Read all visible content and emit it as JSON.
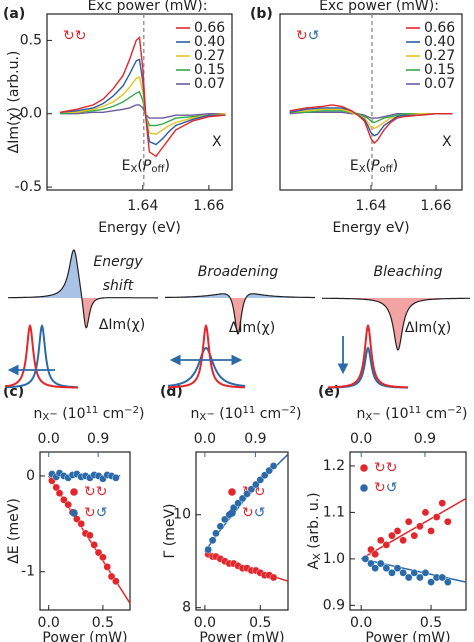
{
  "chart_data": [
    {
      "type": "line",
      "panel": "(a)",
      "legend_title": "Exc power (mW):",
      "polarization": {
        "text": "↻↻",
        "colors": [
          "#e3262b",
          "#e3262b"
        ]
      },
      "xlabel": "Energy (eV)",
      "ylabel": "ΔIm(χ) (arb.u.)",
      "annotation": "X",
      "vline": {
        "x": 1.6403,
        "color": "#8c8c8c",
        "label": [
          {
            "text": "E"
          },
          {
            "text": "X",
            "pos": "sub"
          },
          {
            "text": "("
          },
          {
            "text": "P",
            "style": "italic"
          },
          {
            "text": "off",
            "pos": "sub"
          },
          {
            "text": ")"
          }
        ]
      },
      "x": [
        1.615,
        1.62,
        1.625,
        1.628,
        1.631,
        1.634,
        1.636,
        1.638,
        1.639,
        1.64,
        1.641,
        1.642,
        1.644,
        1.646,
        1.648,
        1.65,
        1.655,
        1.66,
        1.665
      ],
      "xlim": [
        1.611,
        1.667
      ],
      "xticks": [
        1.64,
        1.66
      ],
      "ylim": [
        -0.52,
        0.68
      ],
      "yticks": [
        -0.5,
        {
          "value": 0,
          "label": "0.0"
        },
        0.5
      ],
      "series": [
        {
          "name": "0.66",
          "color": "#e3262b",
          "values": [
            0.01,
            0.03,
            0.06,
            0.1,
            0.17,
            0.26,
            0.37,
            0.5,
            0.52,
            0.31,
            -0.05,
            -0.26,
            -0.29,
            -0.23,
            -0.17,
            -0.11,
            -0.05,
            -0.02,
            -0.01
          ]
        },
        {
          "name": "0.40",
          "color": "#2b5ea8",
          "values": [
            0.01,
            0.02,
            0.04,
            0.07,
            0.12,
            0.19,
            0.27,
            0.36,
            0.37,
            0.22,
            -0.04,
            -0.19,
            -0.21,
            -0.17,
            -0.12,
            -0.08,
            -0.04,
            -0.01,
            -0.01
          ]
        },
        {
          "name": "0.27",
          "color": "#e8c21e",
          "values": [
            0.01,
            0.01,
            0.03,
            0.05,
            0.08,
            0.13,
            0.18,
            0.24,
            0.25,
            0.15,
            -0.03,
            -0.13,
            -0.14,
            -0.11,
            -0.08,
            -0.06,
            -0.03,
            -0.01,
            0.0
          ]
        },
        {
          "name": "0.15",
          "color": "#36a94a",
          "values": [
            0.0,
            0.01,
            0.02,
            0.03,
            0.05,
            0.08,
            0.11,
            0.14,
            0.15,
            0.09,
            -0.02,
            -0.08,
            -0.08,
            -0.07,
            -0.05,
            -0.03,
            -0.02,
            -0.01,
            0.0
          ]
        },
        {
          "name": "0.07",
          "color": "#6b5b9e",
          "values": [
            0.0,
            0.0,
            0.01,
            0.01,
            0.02,
            0.03,
            0.04,
            0.06,
            0.06,
            0.04,
            -0.01,
            -0.03,
            -0.03,
            -0.03,
            -0.02,
            -0.01,
            -0.01,
            0.0,
            0.0
          ]
        }
      ]
    },
    {
      "type": "line",
      "panel": "(b)",
      "legend_title": "Exc power (mW):",
      "polarization": {
        "text": "↻↺",
        "colors": [
          "#e3262b",
          "#2b6aa8"
        ]
      },
      "xlabel": "Energy eV)",
      "annotation": "X",
      "vline": {
        "x": 1.6403,
        "color": "#8c8c8c",
        "label": [
          {
            "text": "E"
          },
          {
            "text": "X",
            "pos": "sub"
          },
          {
            "text": "("
          },
          {
            "text": "P",
            "style": "italic"
          },
          {
            "text": "off",
            "pos": "sub"
          },
          {
            "text": ")"
          }
        ]
      },
      "x": [
        1.615,
        1.62,
        1.625,
        1.628,
        1.631,
        1.634,
        1.636,
        1.638,
        1.639,
        1.64,
        1.641,
        1.642,
        1.644,
        1.646,
        1.648,
        1.65,
        1.655,
        1.66,
        1.665
      ],
      "xlim": [
        1.612,
        1.668
      ],
      "xticks": [
        1.64,
        1.66
      ],
      "ylim": [
        -0.52,
        0.68
      ],
      "series": [
        {
          "name": "0.66",
          "color": "#e3262b",
          "values": [
            0.02,
            0.04,
            0.05,
            0.06,
            0.05,
            0.02,
            -0.01,
            -0.05,
            -0.11,
            -0.17,
            -0.2,
            -0.18,
            -0.11,
            -0.06,
            -0.03,
            -0.02,
            -0.01,
            0.0,
            0.0
          ]
        },
        {
          "name": "0.40",
          "color": "#2b5ea8",
          "values": [
            0.01,
            0.03,
            0.04,
            0.04,
            0.04,
            0.02,
            -0.01,
            -0.04,
            -0.08,
            -0.13,
            -0.15,
            -0.14,
            -0.08,
            -0.05,
            -0.02,
            -0.01,
            -0.01,
            0.0,
            0.0
          ]
        },
        {
          "name": "0.27",
          "color": "#e8c21e",
          "values": [
            0.01,
            0.02,
            0.03,
            0.03,
            0.03,
            0.01,
            -0.01,
            -0.03,
            -0.06,
            -0.09,
            -0.1,
            -0.09,
            -0.06,
            -0.03,
            -0.02,
            -0.01,
            0.0,
            0.0,
            0.0
          ]
        },
        {
          "name": "0.15",
          "color": "#36a94a",
          "values": [
            0.01,
            0.01,
            0.02,
            0.02,
            0.02,
            0.01,
            0.0,
            -0.02,
            -0.03,
            -0.05,
            -0.06,
            -0.05,
            -0.03,
            -0.02,
            -0.01,
            0.0,
            0.0,
            0.0,
            0.0
          ]
        },
        {
          "name": "0.07",
          "color": "#6b5b9e",
          "values": [
            0.0,
            0.01,
            0.01,
            0.01,
            0.01,
            0.0,
            0.0,
            -0.01,
            -0.02,
            -0.03,
            -0.03,
            -0.03,
            -0.02,
            -0.01,
            0.0,
            0.0,
            0.0,
            0.0,
            0.0
          ]
        }
      ]
    },
    {
      "type": "scatter",
      "panel": "(c)",
      "xlabel": "Power (mW)",
      "ylabel": "ΔE (meV)",
      "x2label": [
        {
          "text": "n"
        },
        {
          "text": "X",
          "pos": "sub"
        },
        {
          "text": "−",
          "pos": "subsup"
        },
        {
          "text": " (10"
        },
        {
          "text": "11",
          "pos": "sup"
        },
        {
          "text": " cm"
        },
        {
          "text": "−2",
          "pos": "sup"
        },
        {
          "text": ")"
        }
      ],
      "x2color": "#2b6aa8",
      "x": [
        0.03,
        0.07,
        0.1,
        0.14,
        0.18,
        0.22,
        0.26,
        0.3,
        0.34,
        0.38,
        0.42,
        0.46,
        0.5,
        0.54,
        0.58,
        0.62
      ],
      "xlim": [
        -0.08,
        0.75
      ],
      "xticks": [
        {
          "value": 0,
          "label": "0.0"
        },
        0.5
      ],
      "x2lim": [
        -0.158,
        1.48
      ],
      "x2ticks": [
        {
          "value": 0,
          "label": "0.0"
        },
        0.9
      ],
      "ylim": [
        -1.4,
        0.25
      ],
      "yticks": [
        -1,
        0
      ],
      "legend": "center-right",
      "series": [
        {
          "name": "↻↻",
          "legend_colors": [
            "#e3262b",
            "#e3262b"
          ],
          "color": "#e3262b",
          "values": [
            -0.05,
            -0.12,
            -0.18,
            -0.25,
            -0.3,
            -0.38,
            -0.45,
            -0.5,
            -0.6,
            -0.62,
            -0.72,
            -0.8,
            -0.85,
            -0.95,
            -1.05,
            -1.1
          ]
        },
        {
          "name": "↻↺",
          "legend_colors": [
            "#e3262b",
            "#2b6aa8"
          ],
          "color": "#2b6aa8",
          "values": [
            0.02,
            -0.01,
            0.03,
            0.0,
            -0.02,
            0.01,
            0.02,
            -0.01,
            0.0,
            -0.02,
            0.01,
            0.0,
            -0.03,
            0.01,
            0.0,
            -0.02
          ]
        }
      ],
      "fits": [
        {
          "color": "#e3262b",
          "x": [
            0,
            0.75
          ],
          "values": [
            0,
            -1.33
          ]
        },
        {
          "color": "#2b6aa8",
          "x": [
            0,
            0.66
          ],
          "values": [
            0,
            0
          ]
        }
      ]
    },
    {
      "type": "scatter",
      "panel": "(d)",
      "xlabel": "Power (mW)",
      "ylabel": "Γ (meV)",
      "x2label": [
        {
          "text": "n"
        },
        {
          "text": "X",
          "pos": "sub"
        },
        {
          "text": "−",
          "pos": "subsup"
        },
        {
          "text": " (10"
        },
        {
          "text": "11",
          "pos": "sup"
        },
        {
          "text": " cm"
        },
        {
          "text": "−2",
          "pos": "sup"
        },
        {
          "text": ")"
        }
      ],
      "x2color": "#2b6aa8",
      "x": [
        0.03,
        0.07,
        0.1,
        0.14,
        0.18,
        0.22,
        0.26,
        0.3,
        0.34,
        0.38,
        0.42,
        0.46,
        0.5,
        0.54,
        0.58,
        0.62
      ],
      "xlim": [
        -0.08,
        0.75
      ],
      "xticks": [
        {
          "value": 0,
          "label": "0.0"
        },
        0.5
      ],
      "x2lim": [
        -0.158,
        1.48
      ],
      "x2ticks": [
        {
          "value": 0,
          "label": "0.0"
        },
        0.9
      ],
      "ylim": [
        7.95,
        11.35
      ],
      "yticks": [
        8,
        10
      ],
      "legend": "center-right",
      "series": [
        {
          "name": "↻↻",
          "legend_colors": [
            "#e3262b",
            "#e3262b"
          ],
          "color": "#e3262b",
          "values": [
            9.15,
            9.1,
            9.1,
            9.05,
            9.0,
            8.95,
            8.95,
            8.9,
            8.85,
            8.85,
            8.8,
            8.8,
            8.75,
            8.7,
            8.7,
            8.65
          ]
        },
        {
          "name": "↻↺",
          "legend_colors": [
            "#e3262b",
            "#2b6aa8"
          ],
          "color": "#2b6aa8",
          "values": [
            9.25,
            9.45,
            9.6,
            9.75,
            9.9,
            10.0,
            10.15,
            10.25,
            10.35,
            10.45,
            10.55,
            10.65,
            10.75,
            10.85,
            10.95,
            11.05
          ]
        }
      ],
      "fits": [
        {
          "color": "#e3262b",
          "x": [
            0,
            0.75
          ],
          "values": [
            9.15,
            8.57
          ]
        },
        {
          "color": "#2b6aa8",
          "x": [
            0,
            0.1,
            0.2,
            0.3,
            0.4,
            0.5,
            0.6,
            0.75
          ],
          "values": [
            9.2,
            9.55,
            9.85,
            10.15,
            10.45,
            10.7,
            10.95,
            11.3
          ]
        }
      ]
    },
    {
      "type": "scatter",
      "panel": "(e)",
      "xlabel": "Power (mW)",
      "ylabel": [
        {
          "text": "A"
        },
        {
          "text": "X",
          "pos": "sub"
        },
        {
          "text": " (arb. u.)"
        }
      ],
      "x2label": [
        {
          "text": "n"
        },
        {
          "text": "X",
          "pos": "sub"
        },
        {
          "text": "−",
          "pos": "subsup"
        },
        {
          "text": " (10"
        },
        {
          "text": "11",
          "pos": "sup"
        },
        {
          "text": " cm"
        },
        {
          "text": "−2",
          "pos": "sup"
        },
        {
          "text": ")"
        }
      ],
      "x2color": "#2b6aa8",
      "x": [
        0.03,
        0.07,
        0.1,
        0.14,
        0.18,
        0.22,
        0.26,
        0.3,
        0.34,
        0.38,
        0.42,
        0.46,
        0.5,
        0.54,
        0.58,
        0.62
      ],
      "xlim": [
        -0.08,
        0.75
      ],
      "xticks": [
        {
          "value": 0,
          "label": "0.0"
        },
        0.5
      ],
      "x2lim": [
        -0.158,
        1.48
      ],
      "x2ticks": [
        {
          "value": 0,
          "label": "0.0"
        },
        0.9
      ],
      "ylim": [
        0.89,
        1.23
      ],
      "yticks": [
        0.9,
        {
          "value": 1,
          "label": "1.0"
        },
        1.1,
        1.2
      ],
      "legend": "upper-left",
      "series": [
        {
          "name": "↻↻",
          "legend_colors": [
            "#e3262b",
            "#e3262b"
          ],
          "color": "#e3262b",
          "values": [
            1.0,
            1.02,
            1.01,
            1.04,
            1.03,
            1.05,
            1.06,
            1.04,
            1.08,
            1.05,
            1.07,
            1.1,
            1.06,
            1.09,
            1.12,
            1.08
          ]
        },
        {
          "name": "↻↺",
          "legend_colors": [
            "#e3262b",
            "#2b6aa8"
          ],
          "color": "#2b6aa8",
          "values": [
            1.0,
            0.99,
            0.98,
            0.99,
            0.98,
            0.97,
            0.98,
            0.97,
            0.96,
            0.97,
            0.96,
            0.97,
            0.95,
            0.96,
            0.96,
            0.95
          ]
        }
      ],
      "fits": [
        {
          "color": "#e3262b",
          "x": [
            0,
            0.75
          ],
          "values": [
            1.0,
            1.13
          ]
        },
        {
          "color": "#2b6aa8",
          "x": [
            0,
            0.75
          ],
          "values": [
            1.0,
            0.95
          ]
        }
      ]
    }
  ],
  "schematic": {
    "panels": [
      {
        "title": [
          "Energy",
          "shift"
        ],
        "label": "ΔIm(χ)"
      },
      {
        "title": [
          "Broadening"
        ],
        "label": "ΔIm(χ)"
      },
      {
        "title": [
          "Bleaching"
        ],
        "label": "ΔIm(χ)"
      }
    ]
  }
}
